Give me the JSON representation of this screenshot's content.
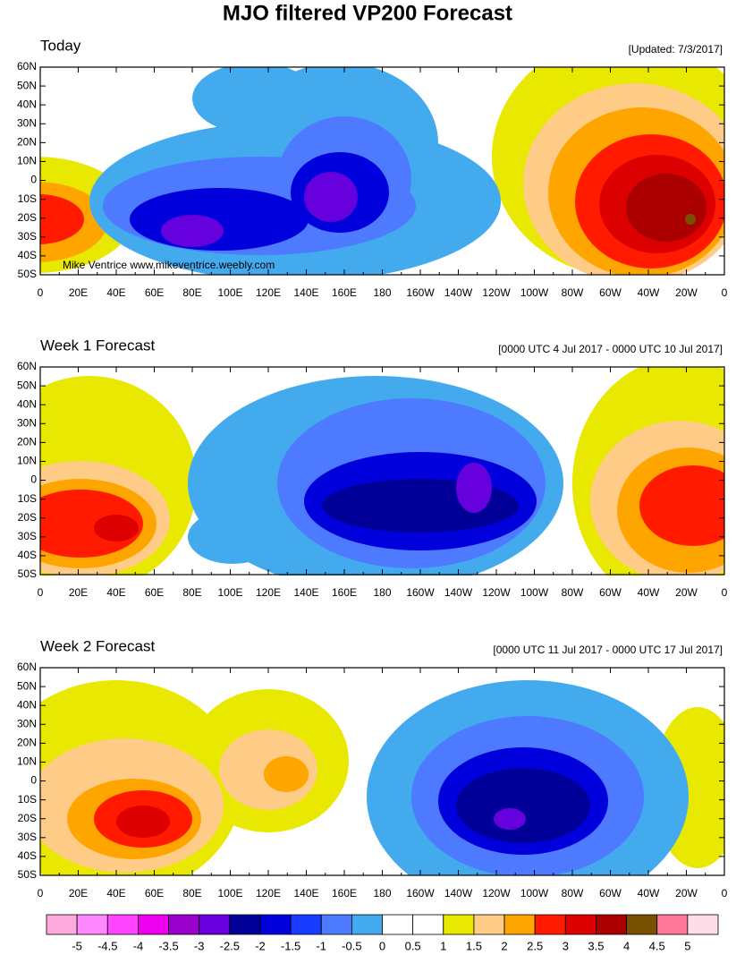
{
  "title": "MJO filtered VP200 Forecast",
  "watermark": "Mike Ventrice www.mikeventrice.weebly.com",
  "lat_labels": [
    "60N",
    "50N",
    "40N",
    "30N",
    "20N",
    "10N",
    "0",
    "10S",
    "20S",
    "30S",
    "40S",
    "50S"
  ],
  "lon_labels": [
    "0",
    "20E",
    "40E",
    "60E",
    "80E",
    "100E",
    "120E",
    "140E",
    "160E",
    "180",
    "160W",
    "140W",
    "120W",
    "100W",
    "80W",
    "60W",
    "40W",
    "20W",
    "0"
  ],
  "panels": [
    {
      "title": "Today",
      "subtitle": "[Updated: 7/3/2017]"
    },
    {
      "title": "Week 1 Forecast",
      "subtitle": "[0000 UTC 4 Jul 2017 - 0000 UTC 10 Jul 2017]"
    },
    {
      "title": "Week 2 Forecast",
      "subtitle": "[0000 UTC 11 Jul 2017 - 0000 UTC 17 Jul 2017]"
    }
  ],
  "colorbar": {
    "levels": [
      -5,
      -4.5,
      -4,
      -3.5,
      -3,
      -2.5,
      -2,
      -1.5,
      -1,
      -0.5,
      0,
      0.5,
      1,
      1.5,
      2,
      2.5,
      3,
      3.5,
      4,
      4.5,
      5
    ],
    "colors": [
      "#ffaadd",
      "#ff88ff",
      "#ff44ff",
      "#ee00ee",
      "#9900cc",
      "#6600dd",
      "#000099",
      "#0000dd",
      "#1a3cff",
      "#4d7aff",
      "#44aaee",
      "#ffffff",
      "#ffffff",
      "#e8e800",
      "#ffcc88",
      "#ffa500",
      "#ff1a00",
      "#dd0000",
      "#aa0000",
      "#775000",
      "#ff7799",
      "#ffdde8"
    ]
  }
}
